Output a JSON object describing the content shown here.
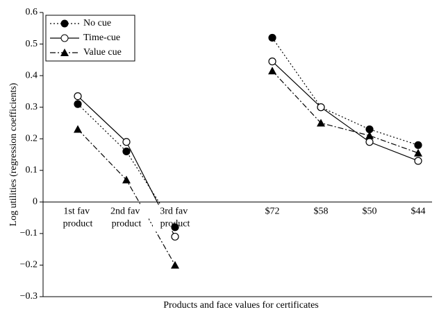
{
  "chart_data": {
    "type": "line",
    "x_label": "Products and face values for certificates",
    "y_label": "Log utilities (regression coefficients)",
    "categories": [
      "1st fav product",
      "2nd fav product",
      "3rd fav product",
      null,
      "$72",
      "$58",
      "$50",
      "$44"
    ],
    "series": [
      {
        "name": "No cue",
        "color": "#000000",
        "dash": "2,3",
        "marker": "circle-filled",
        "values": [
          0.31,
          0.16,
          -0.08,
          null,
          0.52,
          0.3,
          0.23,
          0.18
        ]
      },
      {
        "name": "Time-cue",
        "color": "#000000",
        "dash": "none",
        "marker": "circle-open",
        "values": [
          0.335,
          0.19,
          -0.11,
          null,
          0.445,
          0.3,
          0.19,
          0.13
        ]
      },
      {
        "name": "Value cue",
        "color": "#000000",
        "dash": "8,3,2,3",
        "marker": "triangle-filled",
        "values": [
          0.23,
          0.07,
          -0.2,
          null,
          0.415,
          0.25,
          0.21,
          0.155
        ]
      }
    ],
    "ylim": [
      -0.3,
      0.6
    ],
    "yticks": [
      {
        "value": -0.3,
        "label": "−0.3"
      },
      {
        "value": -0.2,
        "label": "−0.2"
      },
      {
        "value": -0.1,
        "label": "−0.1"
      },
      0,
      0.1,
      0.2,
      0.3,
      0.4,
      0.5,
      0.6
    ],
    "legend": "upper left"
  }
}
